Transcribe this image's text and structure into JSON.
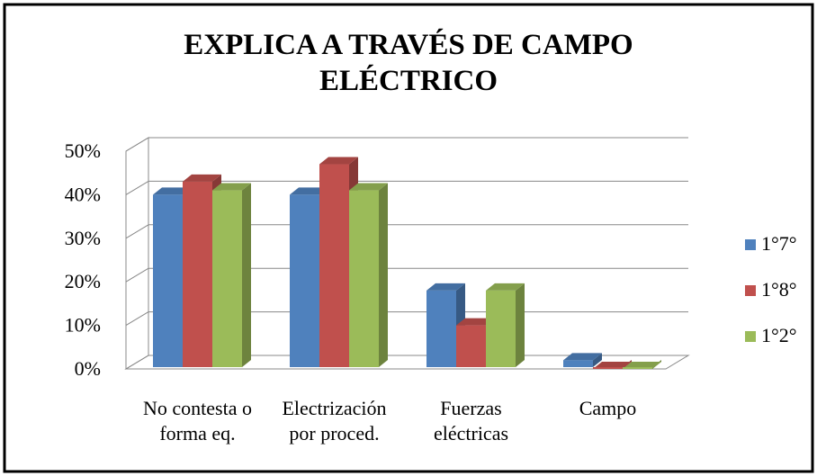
{
  "chart_data": {
    "type": "bar3d",
    "title": "EXPLICA A TRAVÉS DE CAMPO ELÉCTRICO",
    "categories": [
      "No contesta o forma eq.",
      "Electrización por proced.",
      "Fuerzas eléctricas",
      "Campo"
    ],
    "series": [
      {
        "name": "1°7°",
        "color": "#4f81bd",
        "values": [
          40,
          40,
          18,
          2
        ]
      },
      {
        "name": "1°8°",
        "color": "#c0504d",
        "values": [
          43,
          47,
          10,
          0
        ]
      },
      {
        "name": "1°2°",
        "color": "#9bbb59",
        "values": [
          41,
          41,
          18,
          0
        ]
      }
    ],
    "ylim": [
      0,
      50
    ],
    "yticks": [
      {
        "value": 0,
        "label": "0%"
      },
      {
        "value": 10,
        "label": "10%"
      },
      {
        "value": 20,
        "label": "20%"
      },
      {
        "value": 30,
        "label": "30%"
      },
      {
        "value": 40,
        "label": "40%"
      },
      {
        "value": 50,
        "label": "50%"
      }
    ],
    "grid": true,
    "legend": "right"
  }
}
